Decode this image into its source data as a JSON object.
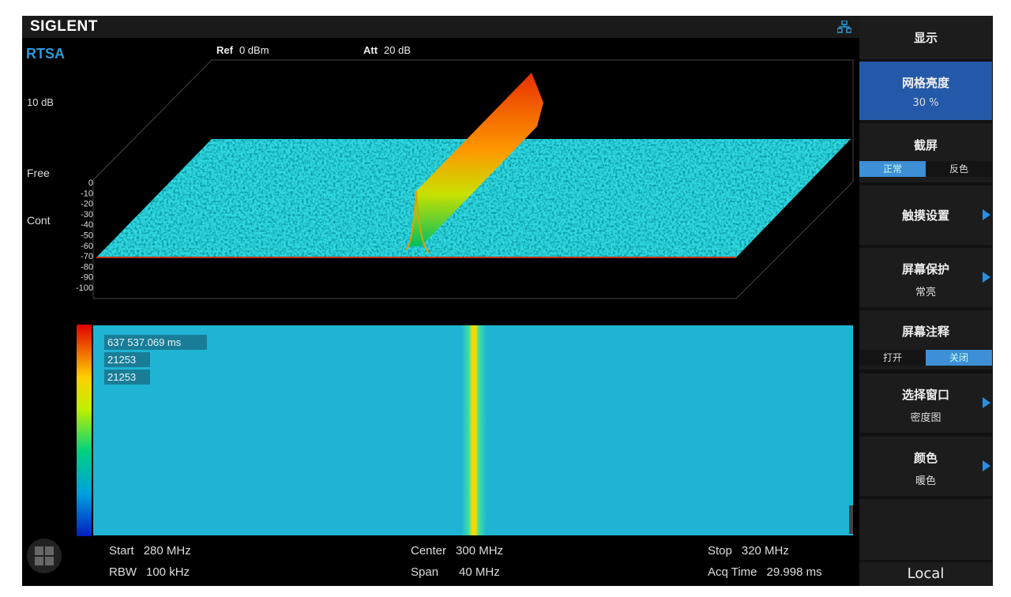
{
  "header": {
    "brand": "SIGLENT",
    "mode": "RTSA",
    "ref_label": "Ref",
    "ref_value": "0 dBm",
    "att_label": "Att",
    "att_value": "20 dB"
  },
  "left_labels": {
    "scale": "10 dB",
    "trigger": "Free",
    "sweep": "Cont"
  },
  "y_axis_ticks": [
    "0",
    "-10",
    "-20",
    "-30",
    "-40",
    "-50",
    "-60",
    "-70",
    "-80",
    "-90",
    "-100"
  ],
  "spectrogram_info": [
    "637 537.069 ms",
    "21253",
    "21253"
  ],
  "footer": {
    "start_label": "Start",
    "start_value": "280 MHz",
    "rbw_label": "RBW",
    "rbw_value": "100 kHz",
    "center_label": "Center",
    "center_value": "300 MHz",
    "span_label": "Span",
    "span_value": "40 MHz",
    "stop_label": "Stop",
    "stop_value": "320 MHz",
    "acq_label": "Acq Time",
    "acq_value": "29.998 ms"
  },
  "menu": {
    "title": "显示",
    "grid_brightness": {
      "label": "网格亮度",
      "value": "30 %"
    },
    "screenshot": {
      "label": "截屏",
      "options": [
        "正常",
        "反色"
      ],
      "selected": "正常"
    },
    "touch": {
      "label": "触摸设置"
    },
    "screensaver": {
      "label": "屏幕保护",
      "value": "常亮"
    },
    "annotation": {
      "label": "屏幕注释",
      "options": [
        "打开",
        "关闭"
      ],
      "selected": "关闭"
    },
    "window": {
      "label": "选择窗口",
      "value": "密度图"
    },
    "color": {
      "label": "颜色",
      "value": "暖色"
    },
    "local": "Local"
  },
  "colors": {
    "accent": "#2a9ad8",
    "active_menu": "#2359a8",
    "noise_floor": "#30d8e0",
    "spectrogram_bg": "#1fb4d4"
  }
}
